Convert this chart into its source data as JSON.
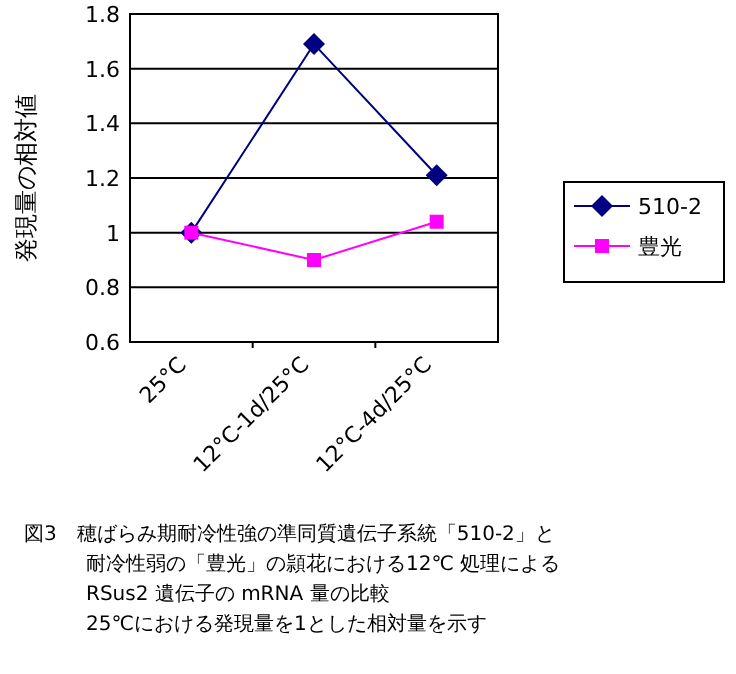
{
  "chart_data": {
    "type": "line",
    "ylabel": "発現量の相対値",
    "categories": [
      "25°C",
      "12°C-1d/25°C",
      "12°C-4d/25°C"
    ],
    "series": [
      {
        "name": "510-2",
        "color": "#000080",
        "values": [
          1.0,
          1.69,
          1.21
        ],
        "marker": "diamond"
      },
      {
        "name": "豊光",
        "color": "#ff00ff",
        "values": [
          1.0,
          0.9,
          1.04
        ],
        "marker": "square"
      }
    ],
    "ylim": [
      0.6,
      1.8
    ],
    "yticks": [
      {
        "value": 0.6,
        "label": "0.6"
      },
      {
        "value": 0.8,
        "label": "0.8"
      },
      {
        "value": 1,
        "label": "1"
      },
      {
        "value": 1.2,
        "label": "1.2"
      },
      {
        "value": 1.4,
        "label": "1.4"
      },
      {
        "value": 1.6,
        "label": "1.6"
      },
      {
        "value": 1.8,
        "label": "1.8"
      }
    ],
    "grid": "y",
    "legend": "right",
    "annotations": [
      "図3　穂ばらみ期耐冷性強の準同質遺伝子系統「510-2」と",
      "耐冷性弱の「豊光」の頴花における12℃ 処理による",
      "RSus2 遺伝子の mRNA 量の比較",
      "25℃における発現量を1とした相対量を示す"
    ]
  }
}
